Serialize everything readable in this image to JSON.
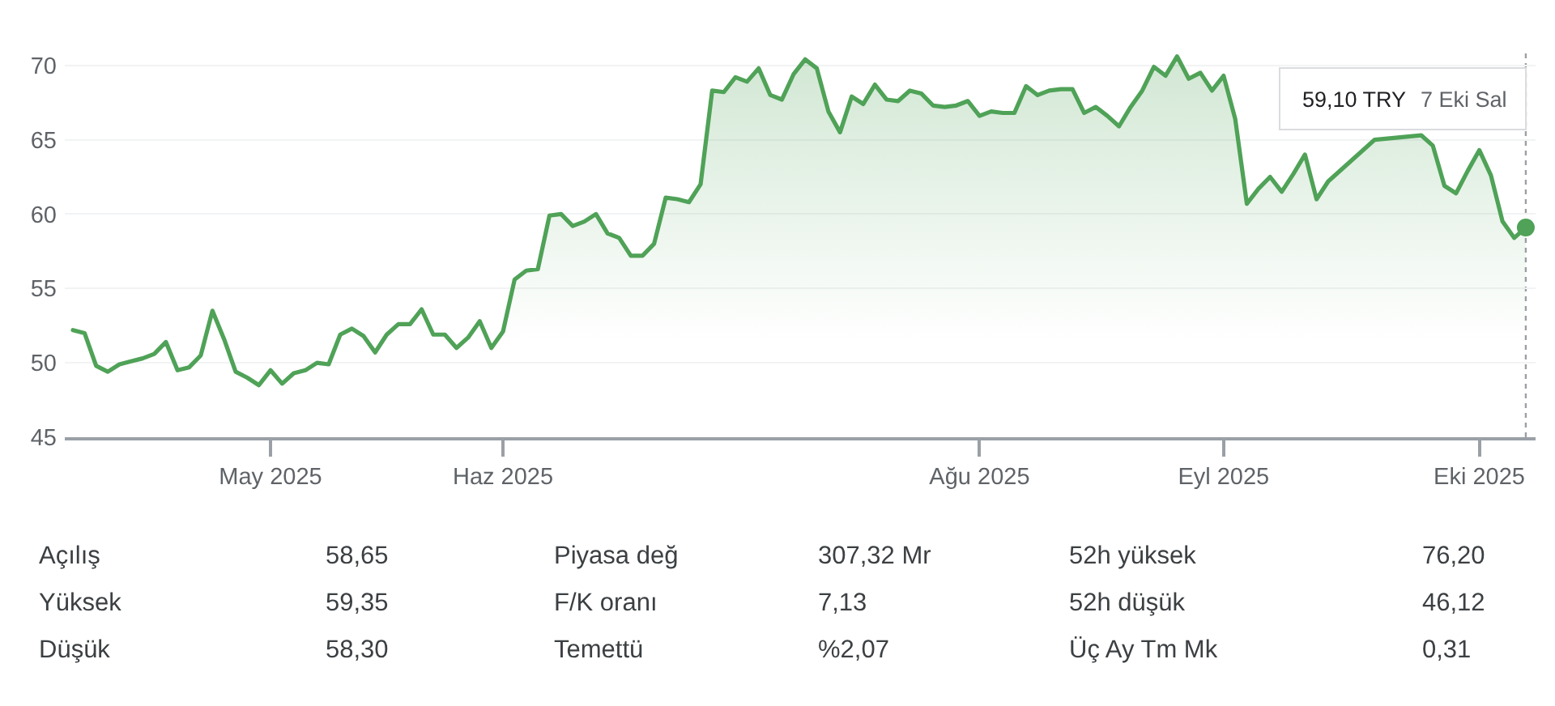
{
  "chart_data": [
    {
      "type": "area",
      "categories": [
        null,
        null,
        null,
        null,
        null,
        null,
        null,
        null,
        null,
        null,
        null,
        null,
        null,
        null,
        null,
        null,
        null,
        "May 2025",
        null,
        null,
        null,
        null,
        null,
        null,
        null,
        null,
        null,
        null,
        null,
        null,
        null,
        null,
        null,
        null,
        null,
        null,
        null,
        "Haz 2025",
        null,
        null,
        null,
        null,
        null,
        null,
        null,
        null,
        null,
        null,
        null,
        null,
        null,
        null,
        null,
        null,
        null,
        null,
        null,
        null,
        null,
        null,
        null,
        null,
        null,
        null,
        null,
        null,
        null,
        null,
        null,
        null,
        null,
        null,
        null,
        null,
        null,
        null,
        null,
        null,
        "Ağu 2025",
        null,
        null,
        null,
        null,
        null,
        null,
        null,
        null,
        null,
        null,
        null,
        null,
        null,
        null,
        null,
        null,
        null,
        null,
        null,
        null,
        "Eyl 2025",
        null,
        null,
        null,
        null,
        null,
        null,
        null,
        null,
        null,
        null,
        null,
        null,
        null,
        null,
        null,
        null,
        null,
        null,
        null,
        null,
        null,
        "Eki 2025",
        null,
        null,
        null,
        null
      ],
      "series": [
        {
          "color": "#4fa257",
          "values": [
            52.2,
            52.0,
            49.8,
            49.4,
            49.9,
            50.1,
            50.3,
            50.6,
            51.4,
            49.5,
            49.7,
            50.5,
            53.5,
            51.6,
            49.4,
            49.0,
            48.5,
            49.5,
            48.6,
            49.3,
            49.5,
            50.0,
            49.9,
            51.9,
            52.3,
            51.8,
            50.7,
            51.9,
            52.6,
            52.6,
            53.6,
            51.9,
            51.9,
            51.0,
            51.7,
            52.8,
            51.0,
            52.1,
            55.6,
            56.2,
            56.3,
            59.9,
            60.0,
            59.2,
            59.5,
            60.0,
            58.7,
            58.4,
            57.2,
            57.2,
            58.0,
            61.1,
            61.0,
            60.8,
            62.0,
            68.3,
            68.2,
            69.2,
            68.9,
            69.8,
            68.0,
            67.7,
            69.4,
            70.4,
            69.8,
            66.9,
            65.5,
            67.9,
            67.4,
            68.7,
            67.7,
            67.6,
            68.3,
            68.1,
            67.3,
            67.2,
            67.3,
            67.6,
            66.6,
            66.9,
            66.8,
            66.8,
            68.6,
            68.0,
            68.3,
            68.4,
            68.4,
            66.8,
            67.2,
            66.6,
            65.9,
            67.2,
            68.3,
            69.9,
            69.3,
            70.6,
            69.1,
            69.5,
            68.3,
            69.3,
            66.4,
            60.7,
            61.7,
            62.5,
            61.5,
            62.7,
            64.0,
            61.0,
            62.2,
            null,
            null,
            null,
            65.0,
            null,
            null,
            null,
            65.3,
            64.6,
            61.9,
            61.4,
            62.9,
            64.3,
            62.6,
            59.5,
            58.4,
            59.1
          ]
        },
        {
          "type": "scatter",
          "color": "#4fa257",
          "values": [
            null,
            null,
            null,
            null,
            null,
            null,
            null,
            null,
            null,
            null,
            null,
            null,
            null,
            null,
            null,
            null,
            null,
            null,
            null,
            null,
            null,
            null,
            null,
            null,
            null,
            null,
            null,
            null,
            null,
            null,
            null,
            null,
            null,
            null,
            null,
            null,
            null,
            null,
            null,
            null,
            null,
            null,
            null,
            null,
            null,
            null,
            null,
            null,
            null,
            null,
            null,
            null,
            null,
            null,
            null,
            null,
            null,
            null,
            null,
            null,
            null,
            null,
            null,
            null,
            null,
            null,
            null,
            null,
            null,
            null,
            null,
            null,
            null,
            null,
            null,
            null,
            null,
            null,
            null,
            null,
            null,
            null,
            null,
            null,
            null,
            null,
            null,
            null,
            null,
            null,
            null,
            null,
            null,
            null,
            null,
            null,
            null,
            null,
            null,
            null,
            null,
            null,
            null,
            null,
            null,
            null,
            null,
            null,
            null,
            null,
            null,
            null,
            null,
            null,
            null,
            null,
            null,
            null,
            null,
            null,
            null,
            null,
            null,
            null,
            null,
            59.1
          ]
        }
      ],
      "ylim": [
        45,
        70.8
      ],
      "yticks": [
        45,
        50,
        55,
        60,
        65,
        70
      ],
      "grid": "y",
      "annotations": [
        "59,10 TRY",
        "7 Eki Sal"
      ]
    },
    {
      "type": "other",
      "annotations": [
        "Açılış",
        "58,65",
        "Piyasa değ",
        "307,32 Mr",
        "52h yüksek",
        "76,20",
        "Yüksek",
        "59,35",
        "F/K oranı",
        "7,13",
        "52h düşük",
        "46,12",
        "Düşük",
        "58,30",
        "Temettü",
        "%2,07",
        "Üç Ay Tm Mk",
        "0,31"
      ]
    }
  ]
}
